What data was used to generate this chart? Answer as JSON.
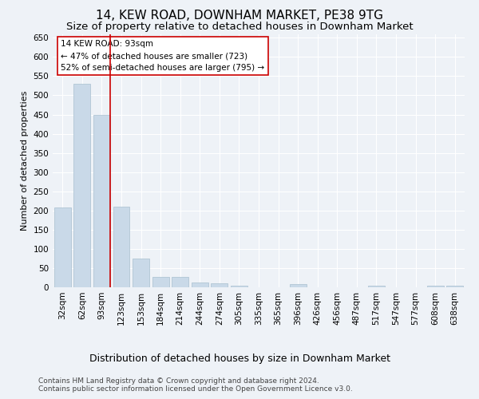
{
  "title": "14, KEW ROAD, DOWNHAM MARKET, PE38 9TG",
  "subtitle": "Size of property relative to detached houses in Downham Market",
  "xlabel": "Distribution of detached houses by size in Downham Market",
  "ylabel": "Number of detached properties",
  "categories": [
    "32sqm",
    "62sqm",
    "93sqm",
    "123sqm",
    "153sqm",
    "184sqm",
    "214sqm",
    "244sqm",
    "274sqm",
    "305sqm",
    "335sqm",
    "365sqm",
    "396sqm",
    "426sqm",
    "456sqm",
    "487sqm",
    "517sqm",
    "547sqm",
    "577sqm",
    "608sqm",
    "638sqm"
  ],
  "values": [
    207,
    530,
    450,
    210,
    75,
    27,
    26,
    13,
    10,
    5,
    1,
    0,
    8,
    1,
    0,
    0,
    5,
    0,
    0,
    5,
    4
  ],
  "bar_color": "#c9d9e8",
  "bar_edge_color": "#a8bfcf",
  "vline_x_index": 2,
  "vline_color": "#cc0000",
  "annotation_text": "14 KEW ROAD: 93sqm\n← 47% of detached houses are smaller (723)\n52% of semi-detached houses are larger (795) →",
  "annotation_box_color": "#ffffff",
  "annotation_box_edge_color": "#cc0000",
  "ylim": [
    0,
    660
  ],
  "yticks": [
    0,
    50,
    100,
    150,
    200,
    250,
    300,
    350,
    400,
    450,
    500,
    550,
    600,
    650
  ],
  "background_color": "#eef2f7",
  "grid_color": "#ffffff",
  "footer_line1": "Contains HM Land Registry data © Crown copyright and database right 2024.",
  "footer_line2": "Contains public sector information licensed under the Open Government Licence v3.0.",
  "title_fontsize": 11,
  "subtitle_fontsize": 9.5,
  "xlabel_fontsize": 9,
  "ylabel_fontsize": 8,
  "tick_fontsize": 7.5,
  "annotation_fontsize": 7.5,
  "footer_fontsize": 6.5
}
